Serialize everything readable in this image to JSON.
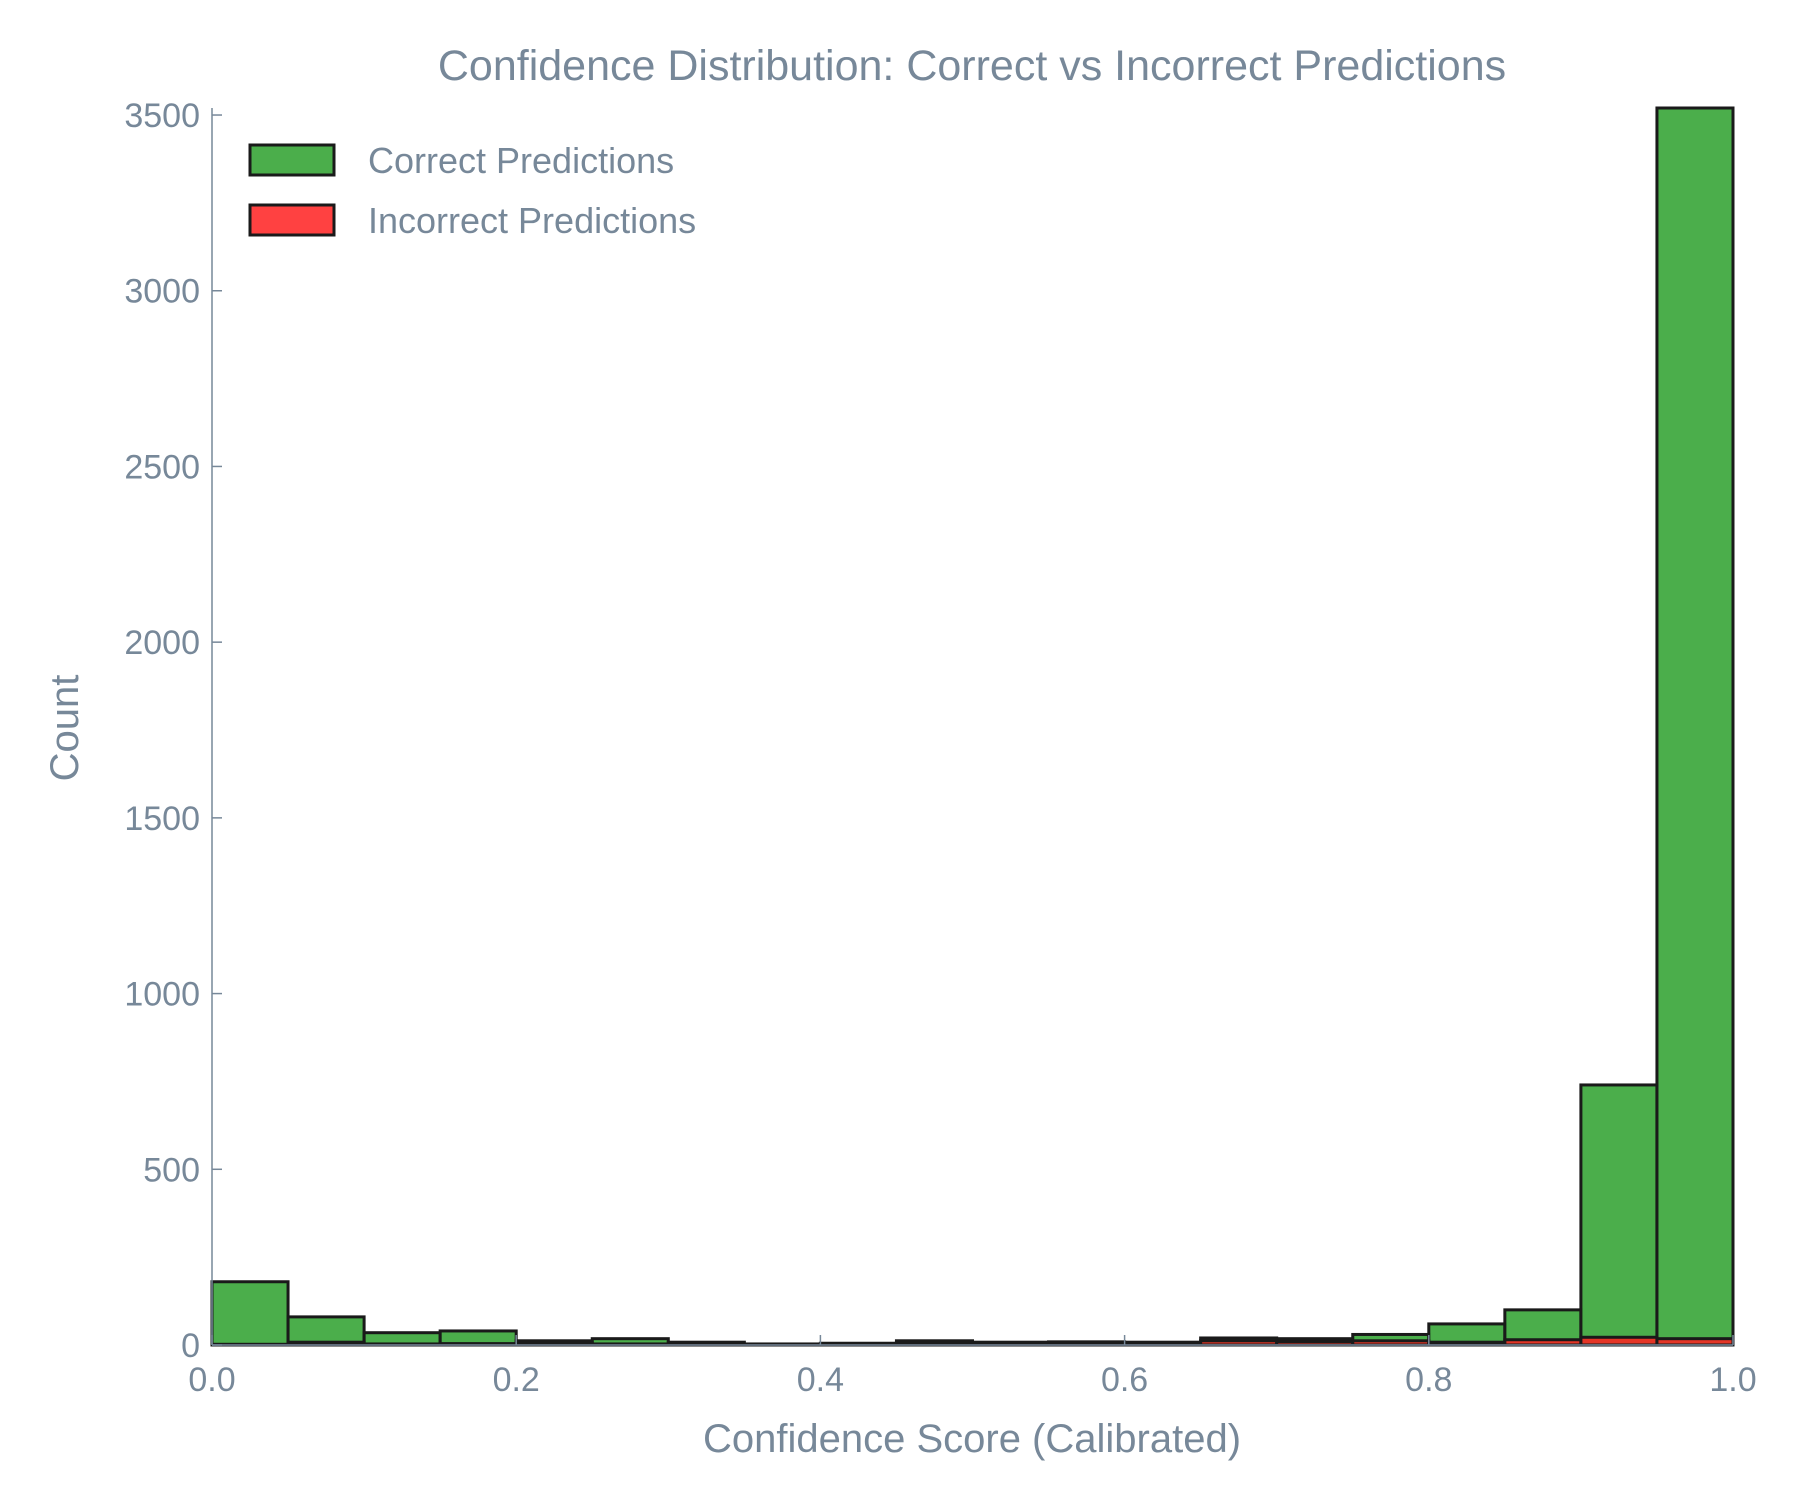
{
  "chart_data": {
    "type": "bar",
    "title": "Confidence Distribution: Correct vs Incorrect Predictions",
    "xlabel": "Confidence Score (Calibrated)",
    "ylabel": "Count",
    "xlim": [
      0.0,
      1.0
    ],
    "ylim": [
      0,
      3520
    ],
    "bin_width": 0.05,
    "bin_edges": [
      0.0,
      0.05,
      0.1,
      0.15,
      0.2,
      0.25,
      0.3,
      0.35,
      0.4,
      0.45,
      0.5,
      0.55,
      0.6,
      0.65,
      0.7,
      0.75,
      0.8,
      0.85,
      0.9,
      0.95,
      1.0
    ],
    "x_ticks": [
      {
        "value": 0.0,
        "label": "0.0"
      },
      {
        "value": 0.2,
        "label": "0.2"
      },
      {
        "value": 0.4,
        "label": "0.4"
      },
      {
        "value": 0.6,
        "label": "0.6"
      },
      {
        "value": 0.8,
        "label": "0.8"
      },
      {
        "value": 1.0,
        "label": "1.0"
      }
    ],
    "y_ticks": [
      {
        "value": 0,
        "label": "0"
      },
      {
        "value": 500,
        "label": "500"
      },
      {
        "value": 1000,
        "label": "1000"
      },
      {
        "value": 1500,
        "label": "1500"
      },
      {
        "value": 2000,
        "label": "2000"
      },
      {
        "value": 2500,
        "label": "2500"
      },
      {
        "value": 3000,
        "label": "3000"
      },
      {
        "value": 3500,
        "label": "3500"
      }
    ],
    "grid": false,
    "legend_position": "top-left",
    "series": [
      {
        "name": "Correct Predictions",
        "color": "#2ca02c",
        "values": [
          180,
          80,
          35,
          40,
          12,
          18,
          8,
          3,
          5,
          12,
          8,
          9,
          8,
          20,
          18,
          30,
          60,
          100,
          740,
          3520
        ]
      },
      {
        "name": "Incorrect Predictions",
        "color": "#ff2020",
        "values": [
          2,
          8,
          3,
          4,
          5,
          3,
          2,
          1,
          3,
          6,
          5,
          8,
          6,
          12,
          10,
          12,
          8,
          15,
          22,
          18
        ]
      }
    ]
  }
}
